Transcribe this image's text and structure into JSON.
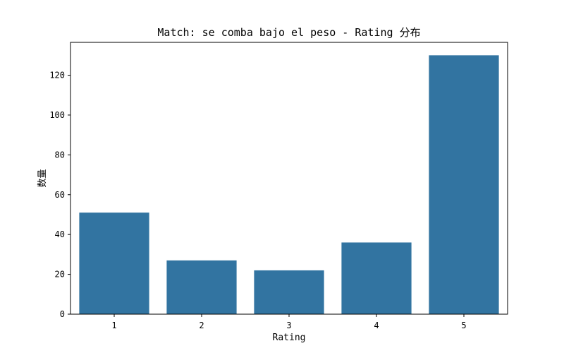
{
  "chart_data": {
    "type": "bar",
    "title": "Match: se comba bajo el peso - Rating 分布",
    "xlabel": "Rating",
    "ylabel": "数量",
    "categories": [
      "1",
      "2",
      "3",
      "4",
      "5"
    ],
    "values": [
      51,
      27,
      22,
      36,
      130
    ],
    "ylim": [
      0,
      136.5
    ],
    "yticks": [
      0,
      20,
      40,
      60,
      80,
      100,
      120
    ],
    "bar_color": "#3274a1",
    "grid": false,
    "legend": "none"
  }
}
